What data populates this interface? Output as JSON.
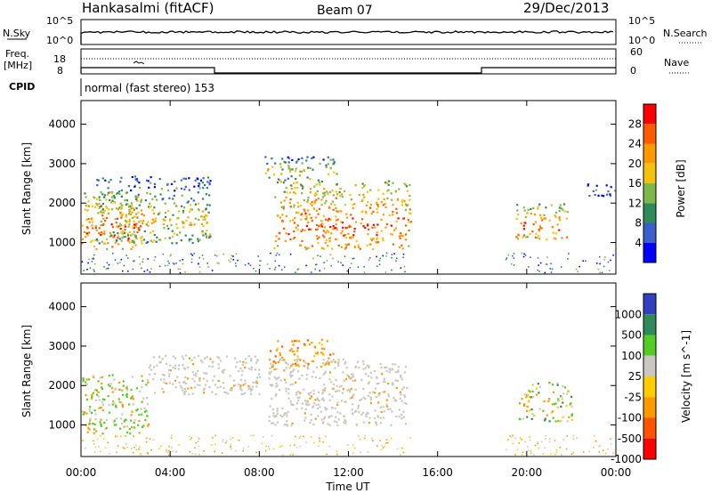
{
  "header": {
    "station": "Hankasalmi (fitACF)",
    "beam": "Beam 07",
    "date": "29/Dec/2013"
  },
  "top_panels": {
    "nsky_label": "N.Sky",
    "nsky_ticks": [
      "10^5",
      "10^0"
    ],
    "nsearch_label": "N.Search",
    "nsearch_ticks": [
      "10^5",
      "10^0"
    ],
    "freq_label_1": "Freq.",
    "freq_label_2": "[MHz]",
    "freq_ticks": [
      "18",
      "8"
    ],
    "nave_label": "Nave",
    "nave_ticks": [
      "60",
      "0"
    ],
    "cpid_label": "CPID",
    "cpid_text": "normal (fast stereo) 153"
  },
  "chart_data": [
    {
      "type": "heatmap",
      "panel": "power",
      "ylabel": "Slant Range [km]",
      "xlabel": "",
      "ylim": [
        200,
        4600
      ],
      "yticks": [
        "1000",
        "2000",
        "3000",
        "4000"
      ],
      "colorbar_label": "Power [dB]",
      "colorbar_ticks": [
        "4",
        "8",
        "12",
        "16",
        "20",
        "24",
        "28"
      ],
      "colorscale": [
        "#0000ff",
        "#3a5fcd",
        "#2e8b57",
        "#7fb84a",
        "#f4c20d",
        "#ff9900",
        "#ff5a00",
        "#ff0000"
      ],
      "features": [
        {
          "t0": 0.0,
          "t1": 2.7,
          "r0": 850,
          "r1": 2300,
          "intensity": "high"
        },
        {
          "t0": 0.6,
          "t1": 5.8,
          "r0": 1000,
          "r1": 2700,
          "intensity": "mid"
        },
        {
          "t0": 8.6,
          "t1": 14.8,
          "r0": 850,
          "r1": 2600,
          "intensity": "high"
        },
        {
          "t0": 8.2,
          "t1": 11.5,
          "r0": 2600,
          "r1": 3200,
          "intensity": "mid"
        },
        {
          "t0": 19.5,
          "t1": 21.8,
          "r0": 1100,
          "r1": 2000,
          "intensity": "high"
        },
        {
          "t0": 22.5,
          "t1": 24.0,
          "r0": 2200,
          "r1": 2500,
          "intensity": "low"
        }
      ]
    },
    {
      "type": "heatmap",
      "panel": "velocity",
      "ylabel": "Slant Range [km]",
      "xlabel": "Time UT",
      "ylim": [
        200,
        4600
      ],
      "yticks": [
        "1000",
        "2000",
        "3000",
        "4000"
      ],
      "xticks": [
        "00:00",
        "04:00",
        "08:00",
        "12:00",
        "16:00",
        "20:00",
        "00:00"
      ],
      "colorbar_label": "Velocity [m s^-1]",
      "colorbar_ticks": [
        "1000",
        "500",
        "100",
        "25",
        "-25",
        "-100",
        "-500",
        "-1000"
      ],
      "colorscale": [
        "#3040c0",
        "#2e8b57",
        "#55cc22",
        "#c8c8c0",
        "#ffcc00",
        "#ff9900",
        "#ff5500",
        "#ff0000"
      ],
      "features": [
        {
          "t0": 0.0,
          "t1": 3.0,
          "r0": 800,
          "r1": 2300,
          "class": "toward"
        },
        {
          "t0": 3.0,
          "t1": 8.0,
          "r0": 1800,
          "r1": 2800,
          "class": "ground"
        },
        {
          "t0": 8.4,
          "t1": 14.6,
          "r0": 1000,
          "r1": 2700,
          "class": "ground"
        },
        {
          "t0": 8.4,
          "t1": 11.3,
          "r0": 2500,
          "r1": 3200,
          "class": "away"
        },
        {
          "t0": 19.6,
          "t1": 22.0,
          "r0": 1100,
          "r1": 2100,
          "class": "mixed"
        }
      ]
    }
  ]
}
